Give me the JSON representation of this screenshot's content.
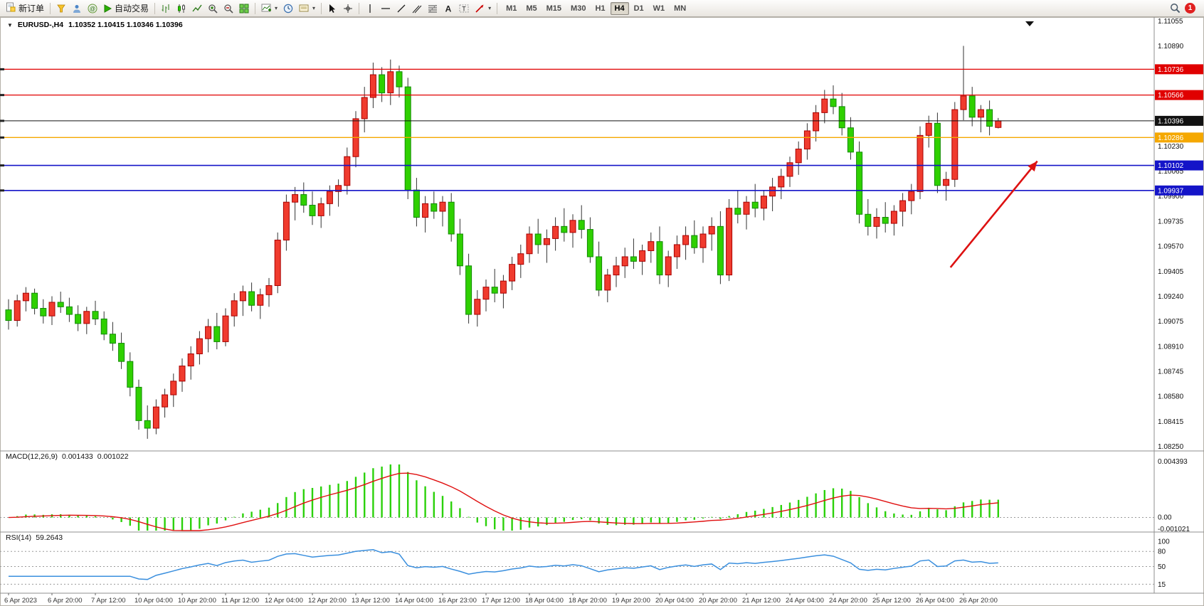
{
  "toolbar": {
    "new_order_label": "新订单",
    "auto_trading_label": "自动交易",
    "timeframes": [
      "M1",
      "M5",
      "M15",
      "M30",
      "H1",
      "H4",
      "D1",
      "W1",
      "MN"
    ],
    "active_timeframe": "H4",
    "badge_count": "1"
  },
  "chart": {
    "symbol_period": "EURUSD-,H4",
    "ohlc": "1.10352 1.10415 1.10346 1.10396"
  },
  "chart_data": {
    "type": "candlestick",
    "symbol": "EURUSD-",
    "period": "H4",
    "colors": {
      "up": "#f03b2e",
      "up_border": "#a80000",
      "down": "#2fd000",
      "down_border": "#118a00",
      "wick": "#333333"
    },
    "price_range": {
      "top": 1.1108,
      "bottom": 1.0822
    },
    "price_axis_ticks": [
      1.11055,
      1.1089,
      1.1023,
      1.10065,
      1.099,
      1.09735,
      1.0957,
      1.09405,
      1.0924,
      1.09075,
      1.0891,
      1.08745,
      1.0858,
      1.08415,
      1.0825
    ],
    "current_price": "1.10396",
    "hlines": [
      {
        "price": 1.10736,
        "label": "1.10736",
        "color": "#e00000",
        "width": 1.2
      },
      {
        "price": 1.10566,
        "label": "1.10566",
        "color": "#e00000",
        "width": 1.2
      },
      {
        "price": 1.10396,
        "label": "1.10396",
        "color": "#111111",
        "width": 1
      },
      {
        "price": 1.10286,
        "label": "1.10286",
        "color": "#f5a800",
        "width": 1.4
      },
      {
        "price": 1.10102,
        "label": "1.10102",
        "color": "#1414c8",
        "width": 1.6
      },
      {
        "price": 1.09937,
        "label": "1.09937",
        "color": "#1414c8",
        "width": 1.6
      }
    ],
    "candles": [
      [
        1.0915,
        1.0922,
        1.0902,
        1.0908
      ],
      [
        1.0908,
        1.0925,
        1.0904,
        1.0921
      ],
      [
        1.0921,
        1.093,
        1.0914,
        1.0926
      ],
      [
        1.0926,
        1.0929,
        1.0912,
        1.0916
      ],
      [
        1.0916,
        1.0922,
        1.0906,
        1.0911
      ],
      [
        1.0911,
        1.0924,
        1.0905,
        1.092
      ],
      [
        1.092,
        1.0927,
        1.0913,
        1.0917
      ],
      [
        1.0917,
        1.0923,
        1.0907,
        1.0912
      ],
      [
        1.0912,
        1.0918,
        1.0901,
        1.0906
      ],
      [
        1.0906,
        1.0917,
        1.0899,
        1.0914
      ],
      [
        1.0914,
        1.0921,
        1.0905,
        1.0909
      ],
      [
        1.0909,
        1.0914,
        1.0895,
        1.0899
      ],
      [
        1.0899,
        1.0907,
        1.0888,
        1.0893
      ],
      [
        1.0893,
        1.09,
        1.0876,
        1.0881
      ],
      [
        1.0881,
        1.0887,
        1.0858,
        1.0864
      ],
      [
        1.0864,
        1.0869,
        1.0836,
        1.0842
      ],
      [
        1.0842,
        1.0852,
        1.083,
        1.0837
      ],
      [
        1.0837,
        1.0856,
        1.0833,
        1.0851
      ],
      [
        1.0851,
        1.0863,
        1.0844,
        1.0859
      ],
      [
        1.0859,
        1.0873,
        1.0851,
        1.0868
      ],
      [
        1.0868,
        1.0883,
        1.0861,
        1.0878
      ],
      [
        1.0878,
        1.0891,
        1.0869,
        1.0886
      ],
      [
        1.0886,
        1.0901,
        1.0879,
        1.0896
      ],
      [
        1.0896,
        1.0909,
        1.0887,
        1.0904
      ],
      [
        1.0904,
        1.0913,
        1.0889,
        1.0894
      ],
      [
        1.0894,
        1.0916,
        1.0891,
        1.0911
      ],
      [
        1.0911,
        1.0926,
        1.0904,
        1.0921
      ],
      [
        1.0921,
        1.0931,
        1.0911,
        1.0927
      ],
      [
        1.0927,
        1.0933,
        1.0914,
        1.0918
      ],
      [
        1.0918,
        1.0929,
        1.0909,
        1.0925
      ],
      [
        1.0925,
        1.0936,
        1.0917,
        1.0931
      ],
      [
        1.0931,
        1.0966,
        1.0926,
        1.0961
      ],
      [
        1.0961,
        1.0991,
        1.0954,
        1.0986
      ],
      [
        1.0986,
        1.0996,
        1.0974,
        1.0991
      ],
      [
        1.0991,
        1.0999,
        1.0979,
        1.0984
      ],
      [
        1.0984,
        1.0993,
        1.0971,
        1.0977
      ],
      [
        1.0977,
        1.0989,
        1.0969,
        1.0985
      ],
      [
        1.0985,
        1.0997,
        1.0977,
        1.0993
      ],
      [
        1.0993,
        1.1001,
        1.0983,
        1.0997
      ],
      [
        1.0997,
        1.1022,
        1.0991,
        1.1016
      ],
      [
        1.1016,
        1.1046,
        1.1009,
        1.1041
      ],
      [
        1.1041,
        1.1062,
        1.1032,
        1.1055
      ],
      [
        1.1055,
        1.1078,
        1.1048,
        1.107
      ],
      [
        1.107,
        1.1075,
        1.1052,
        1.1058
      ],
      [
        1.1058,
        1.108,
        1.105,
        1.1072
      ],
      [
        1.1072,
        1.1076,
        1.1055,
        1.1062
      ],
      [
        1.1062,
        1.1068,
        1.0988,
        1.0994
      ],
      [
        1.0994,
        1.1002,
        1.097,
        1.0976
      ],
      [
        1.0976,
        1.099,
        1.0966,
        1.0985
      ],
      [
        1.0985,
        1.0993,
        1.0975,
        1.098
      ],
      [
        1.098,
        1.099,
        1.097,
        1.0986
      ],
      [
        1.0986,
        1.0992,
        1.096,
        1.0965
      ],
      [
        1.0965,
        1.0975,
        1.0938,
        1.0944
      ],
      [
        1.0944,
        1.0952,
        1.0906,
        1.0912
      ],
      [
        1.0912,
        1.0928,
        1.0904,
        1.0922
      ],
      [
        1.0922,
        1.0935,
        1.0914,
        1.093
      ],
      [
        1.093,
        1.0942,
        1.092,
        1.0926
      ],
      [
        1.0926,
        1.0938,
        1.0916,
        1.0934
      ],
      [
        1.0934,
        1.095,
        1.0928,
        1.0945
      ],
      [
        1.0945,
        1.0958,
        1.0936,
        1.0952
      ],
      [
        1.0952,
        1.097,
        1.0946,
        1.0965
      ],
      [
        1.0965,
        1.0975,
        1.0952,
        1.0958
      ],
      [
        1.0958,
        1.0968,
        1.0946,
        1.0962
      ],
      [
        1.0962,
        1.0976,
        1.0954,
        1.097
      ],
      [
        1.097,
        1.0982,
        1.096,
        1.0966
      ],
      [
        1.0966,
        1.0978,
        1.0956,
        1.0974
      ],
      [
        1.0974,
        1.0984,
        1.0962,
        1.0968
      ],
      [
        1.0968,
        1.0976,
        1.0946,
        1.095
      ],
      [
        1.095,
        1.096,
        1.0924,
        1.0928
      ],
      [
        1.0928,
        1.0942,
        1.092,
        1.0938
      ],
      [
        1.0938,
        1.095,
        1.093,
        1.0944
      ],
      [
        1.0944,
        1.0956,
        1.0936,
        1.095
      ],
      [
        1.095,
        1.0962,
        1.0942,
        1.0947
      ],
      [
        1.0947,
        1.0958,
        1.0938,
        1.0954
      ],
      [
        1.0954,
        1.0966,
        1.0946,
        1.096
      ],
      [
        1.096,
        1.097,
        1.0932,
        1.0938
      ],
      [
        1.0938,
        1.0954,
        1.093,
        1.095
      ],
      [
        1.095,
        1.0964,
        1.0942,
        1.0958
      ],
      [
        1.0958,
        1.097,
        1.0948,
        1.0964
      ],
      [
        1.0964,
        1.0974,
        1.0952,
        1.0956
      ],
      [
        1.0956,
        1.097,
        1.0946,
        1.0965
      ],
      [
        1.0965,
        1.0976,
        1.0954,
        1.097
      ],
      [
        1.097,
        1.098,
        1.0932,
        1.0938
      ],
      [
        1.0938,
        1.0988,
        1.0934,
        1.0982
      ],
      [
        1.0982,
        1.0994,
        1.0972,
        1.0978
      ],
      [
        1.0978,
        1.099,
        1.0968,
        1.0986
      ],
      [
        1.0986,
        1.0998,
        1.0976,
        1.0982
      ],
      [
        1.0982,
        1.0994,
        1.0974,
        1.099
      ],
      [
        1.099,
        1.1002,
        1.098,
        1.0996
      ],
      [
        1.0996,
        1.1008,
        1.0988,
        1.1003
      ],
      [
        1.1003,
        1.1016,
        1.0996,
        1.1012
      ],
      [
        1.1012,
        1.1026,
        1.1004,
        1.1021
      ],
      [
        1.1021,
        1.1038,
        1.1014,
        1.1033
      ],
      [
        1.1033,
        1.105,
        1.1026,
        1.1045
      ],
      [
        1.1045,
        1.106,
        1.1038,
        1.1054
      ],
      [
        1.1054,
        1.1063,
        1.1044,
        1.1049
      ],
      [
        1.1049,
        1.1058,
        1.103,
        1.1035
      ],
      [
        1.1035,
        1.1042,
        1.1014,
        1.1019
      ],
      [
        1.1019,
        1.1026,
        1.0972,
        1.0978
      ],
      [
        1.0978,
        1.0988,
        1.0964,
        1.097
      ],
      [
        1.097,
        1.0982,
        1.0962,
        1.0976
      ],
      [
        1.0976,
        1.0986,
        1.0966,
        1.0972
      ],
      [
        1.0972,
        1.0984,
        1.0964,
        1.098
      ],
      [
        1.098,
        1.0992,
        1.097,
        1.0987
      ],
      [
        1.0987,
        1.0998,
        1.0978,
        1.0993
      ],
      [
        1.0993,
        1.1036,
        1.0988,
        1.103
      ],
      [
        1.103,
        1.1043,
        1.1022,
        1.1038
      ],
      [
        1.1038,
        1.1045,
        1.0992,
        1.0997
      ],
      [
        1.0997,
        1.1006,
        1.0987,
        1.1001
      ],
      [
        1.1001,
        1.1052,
        1.0996,
        1.1047
      ],
      [
        1.1047,
        1.1089,
        1.104,
        1.1056
      ],
      [
        1.1056,
        1.1062,
        1.1036,
        1.1042
      ],
      [
        1.1042,
        1.105,
        1.1032,
        1.1047
      ],
      [
        1.1047,
        1.1053,
        1.103,
        1.1036
      ],
      [
        1.10352,
        1.10415,
        1.10346,
        1.10396
      ]
    ],
    "time_labels": [
      "6 Apr 2023",
      "6 Apr 20:00",
      "7 Apr 12:00",
      "10 Apr 04:00",
      "10 Apr 20:00",
      "11 Apr 12:00",
      "12 Apr 04:00",
      "12 Apr 20:00",
      "13 Apr 12:00",
      "14 Apr 04:00",
      "16 Apr 23:00",
      "17 Apr 12:00",
      "18 Apr 04:00",
      "18 Apr 20:00",
      "19 Apr 20:00",
      "20 Apr 04:00",
      "20 Apr 20:00",
      "21 Apr 12:00",
      "24 Apr 04:00",
      "24 Apr 20:00",
      "25 Apr 12:00",
      "26 Apr 04:00",
      "26 Apr 20:00"
    ],
    "bars_per_label": 5,
    "arrow": {
      "from_index": 108.5,
      "from_price": 1.0943,
      "to_index": 118.5,
      "to_price": 1.1013,
      "color": "#dd1111"
    },
    "macd": {
      "name": "MACD(12,26,9)",
      "value_main": "0.001433",
      "value_signal": "0.001022",
      "vmax": 0.004393,
      "vmin": -0.001021,
      "axis_labels": [
        "0.004393",
        "0.00",
        "-0.001021"
      ],
      "hist_color": "#2bd10a",
      "signal_color": "#e01010"
    },
    "rsi": {
      "name": "RSI(14)",
      "value": "59.2643",
      "levels": [
        80,
        50,
        15
      ],
      "axis_values": [
        100,
        80,
        50,
        15
      ],
      "line_color": "#3a8fde"
    }
  }
}
